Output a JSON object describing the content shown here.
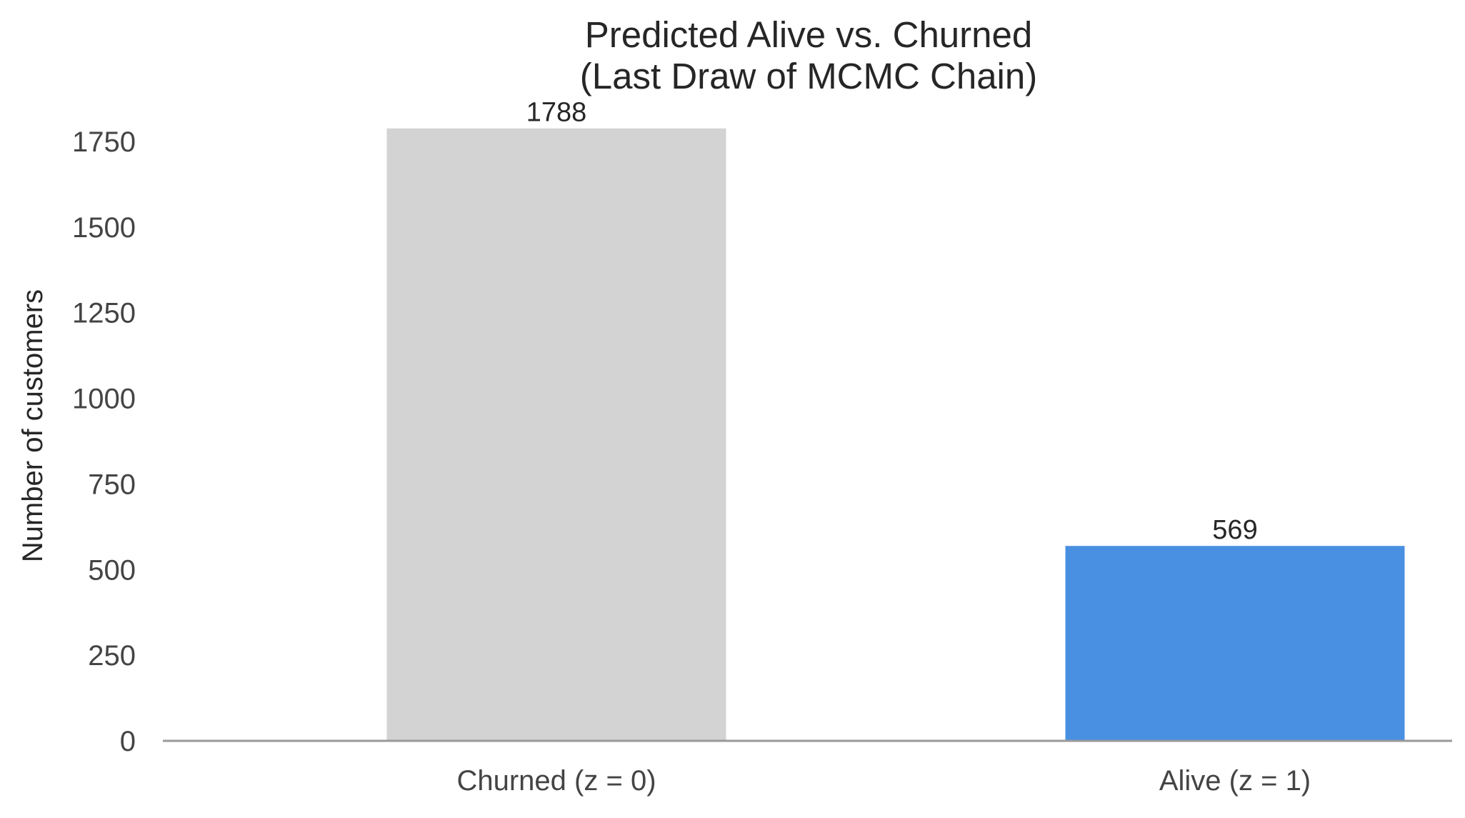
{
  "chart_data": {
    "type": "bar",
    "title_lines": [
      "Predicted Alive vs. Churned",
      "(Last Draw of MCMC Chain)"
    ],
    "xlabel": "",
    "ylabel": "Number of customers",
    "categories": [
      "Churned (z = 0)",
      "Alive (z = 1)"
    ],
    "values": [
      1788,
      569
    ],
    "colors": [
      "#d3d3d3",
      "#4a90e2"
    ],
    "ylim": [
      0,
      1850
    ],
    "yticks": [
      0,
      250,
      500,
      750,
      1000,
      1250,
      1500,
      1750
    ],
    "grid": false,
    "data_labels": [
      "1788",
      "569"
    ]
  }
}
